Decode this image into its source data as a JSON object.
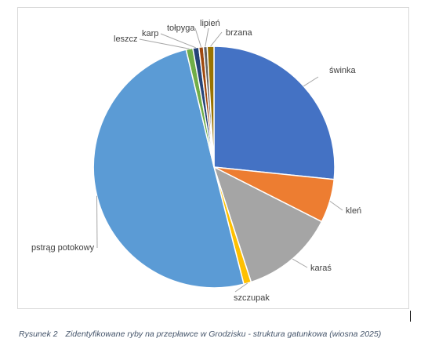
{
  "chart_data": {
    "type": "pie",
    "title": "",
    "slices": [
      {
        "name": "świnka",
        "value": 26.5,
        "color": "#4472c4"
      },
      {
        "name": "kleń",
        "value": 5.8,
        "color": "#ed7d31"
      },
      {
        "name": "karaś",
        "value": 12.5,
        "color": "#a5a5a5"
      },
      {
        "name": "szczupak",
        "value": 1.0,
        "color": "#ffc000"
      },
      {
        "name": "pstrąg potokowy",
        "value": 50.0,
        "color": "#5b9bd5"
      },
      {
        "name": "leszcz",
        "value": 0.9,
        "color": "#70ad47"
      },
      {
        "name": "karp",
        "value": 0.8,
        "color": "#264478"
      },
      {
        "name": "tołpyga",
        "value": 0.6,
        "color": "#9e480e"
      },
      {
        "name": "lipień",
        "value": 0.5,
        "color": "#636363"
      },
      {
        "name": "brzana",
        "value": 0.9,
        "color": "#997300"
      }
    ],
    "legend": "none",
    "labels": "outside-with-leader-lines"
  },
  "caption": {
    "figure_number": "Rysunek 2",
    "text": "Zidentyfikowane ryby na przepławce w Grodzisku - struktura gatunkowa (wiosna 2025)"
  }
}
